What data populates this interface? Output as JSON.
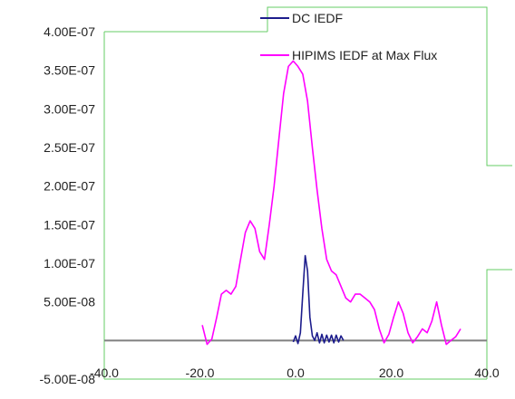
{
  "chart_data": {
    "type": "line",
    "title": "",
    "xlabel": "",
    "ylabel": "",
    "xlim": [
      -40,
      40
    ],
    "ylim": [
      -5e-08,
      4e-07
    ],
    "x_ticks": [
      {
        "value": -40,
        "label": "-40.0"
      },
      {
        "value": -20,
        "label": "-20.0"
      },
      {
        "value": 0,
        "label": "0.0"
      },
      {
        "value": 20,
        "label": "20.0"
      },
      {
        "value": 40,
        "label": "40.0"
      }
    ],
    "y_ticks": [
      {
        "value": 4e-07,
        "label": "4.00E-07"
      },
      {
        "value": 3.5e-07,
        "label": "3.50E-07"
      },
      {
        "value": 3e-07,
        "label": "3.00E-07"
      },
      {
        "value": 2.5e-07,
        "label": "2.50E-07"
      },
      {
        "value": 2e-07,
        "label": "2.00E-07"
      },
      {
        "value": 1.5e-07,
        "label": "1.50E-07"
      },
      {
        "value": 1e-07,
        "label": "1.00E-07"
      },
      {
        "value": 5e-08,
        "label": "5.00E-08"
      },
      {
        "value": -5e-08,
        "label": "-5.00E-08"
      }
    ],
    "legend": {
      "position": "top-right",
      "entries": [
        "DC IEDF",
        "HIPIMS IEDF at Max Flux"
      ]
    },
    "series": [
      {
        "name": "DC IEDF",
        "color": "#1c1c8c",
        "x": [
          -0.5,
          0.0,
          0.5,
          1.0,
          1.5,
          2.0,
          2.5,
          3.0,
          3.5,
          4.0,
          4.5,
          5.0,
          5.5,
          6.0,
          6.5,
          7.0,
          7.5,
          8.0,
          8.5,
          9.0,
          9.5,
          10.0
        ],
        "y": [
          -2e-09,
          6e-09,
          -4e-09,
          1e-08,
          6e-08,
          1.1e-07,
          9e-08,
          3e-08,
          6e-09,
          0.0,
          1e-08,
          -3e-09,
          8e-09,
          -3e-09,
          7e-09,
          -2e-09,
          7e-09,
          -3e-09,
          7e-09,
          -2e-09,
          6e-09,
          0.0
        ]
      },
      {
        "name": "HIPIMS IEDF at Max Flux",
        "color": "#ff00ff",
        "x": [
          -19.5,
          -18.5,
          -17.5,
          -16.5,
          -15.5,
          -14.5,
          -13.5,
          -12.5,
          -11.5,
          -10.5,
          -9.5,
          -8.5,
          -7.5,
          -6.5,
          -5.5,
          -4.5,
          -3.5,
          -2.5,
          -1.5,
          -0.5,
          0.5,
          1.5,
          2.5,
          3.5,
          4.5,
          5.5,
          6.5,
          7.5,
          8.5,
          9.5,
          10.5,
          11.5,
          12.5,
          13.5,
          14.5,
          15.5,
          16.5,
          17.5,
          18.5,
          19.5,
          20.5,
          21.5,
          22.5,
          23.5,
          24.5,
          25.5,
          26.5,
          27.5,
          28.5,
          29.5,
          30.5,
          31.5,
          32.5,
          33.5,
          34.5
        ],
        "y": [
          2e-08,
          -5e-09,
          2e-09,
          3e-08,
          6e-08,
          6.5e-08,
          6e-08,
          7e-08,
          1.05e-07,
          1.4e-07,
          1.55e-07,
          1.45e-07,
          1.15e-07,
          1.05e-07,
          1.5e-07,
          2e-07,
          2.6e-07,
          3.2e-07,
          3.55e-07,
          3.62e-07,
          3.55e-07,
          3.45e-07,
          3.1e-07,
          2.5e-07,
          1.95e-07,
          1.45e-07,
          1.05e-07,
          9e-08,
          8.5e-08,
          7e-08,
          5.5e-08,
          5e-08,
          6e-08,
          6e-08,
          5.5e-08,
          5e-08,
          4e-08,
          1.5e-08,
          -3e-09,
          8e-09,
          3e-08,
          5e-08,
          3.5e-08,
          1e-08,
          -3e-09,
          5e-09,
          1.5e-08,
          1e-08,
          2.5e-08,
          5e-08,
          2e-08,
          -5e-09,
          0.0,
          5e-09,
          1.5e-08
        ]
      }
    ],
    "axis_line": {
      "value": 0,
      "color": "#808080"
    },
    "grid": false
  },
  "ui": {
    "frame_color": "#66cc66",
    "tick_text_color": "#222222"
  }
}
